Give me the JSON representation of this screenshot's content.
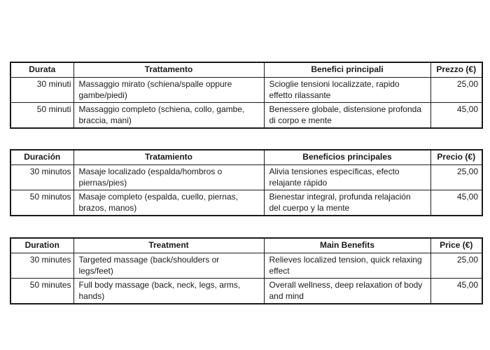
{
  "page": {
    "background_color": "#ffffff",
    "text_color": "#1a1a1a",
    "border_color": "#1a1a1a"
  },
  "tables": [
    {
      "headers": [
        "Durata",
        "Trattamento",
        "Benefici principali",
        "Prezzo (€)"
      ],
      "rows": [
        {
          "duration": "30 minuti",
          "treatment": "Massaggio mirato (schiena/spalle oppure\ngambe/piedi)",
          "benefits": "Scioglie tensioni localizzate, rapido\neffetto rilassante",
          "price": "25,00"
        },
        {
          "duration": "50 minuti",
          "treatment": "Massaggio completo (schiena, collo, gambe,\nbraccia, mani)",
          "benefits": "Benessere globale, distensione profonda\ndi corpo e mente",
          "price": "45,00"
        }
      ]
    },
    {
      "headers": [
        "Duración",
        "Tratamiento",
        "Beneficios principales",
        "Precio (€)"
      ],
      "rows": [
        {
          "duration": "30 minutos",
          "treatment": "Masaje localizado (espalda/hombros o\npiernas/pies)",
          "benefits": "Alivia tensiones específicas, efecto\nrelajante rápido",
          "price": "25,00"
        },
        {
          "duration": "50 minutos",
          "treatment": "Masaje completo (espalda, cuello, piernas,\nbrazos, manos)",
          "benefits": "Bienestar integral, profunda relajación\ndel cuerpo y la mente",
          "price": "45,00"
        }
      ]
    },
    {
      "headers": [
        "Duration",
        "Treatment",
        "Main Benefits",
        "Price (€)"
      ],
      "rows": [
        {
          "duration": "30 minutes",
          "treatment": "Targeted massage (back/shoulders or\nlegs/feet)",
          "benefits": "Relieves localized tension, quick relaxing\neffect",
          "price": "25,00"
        },
        {
          "duration": "50 minutes",
          "treatment": "Full body massage (back, neck, legs, arms,\nhands)",
          "benefits": "Overall wellness, deep relaxation of body\nand mind",
          "price": "45,00"
        }
      ]
    }
  ]
}
